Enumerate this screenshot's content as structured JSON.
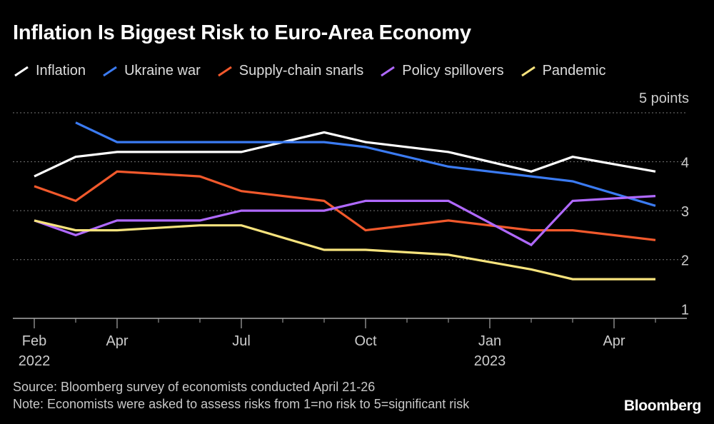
{
  "chart_data": {
    "type": "line",
    "title": "Inflation Is Biggest Risk to Euro-Area Economy",
    "unit_label": "5 points",
    "x": [
      "2022-02",
      "2022-03",
      "2022-04",
      "2022-05",
      "2022-06",
      "2022-07",
      "2022-08",
      "2022-09",
      "2022-10",
      "2022-11",
      "2022-12",
      "2023-01",
      "2023-02",
      "2023-03",
      "2023-04",
      "2023-05"
    ],
    "x_tick_labels": [
      {
        "month": "Feb",
        "year": "2022",
        "x": "2022-02"
      },
      {
        "month": "Apr",
        "year": "",
        "x": "2022-04"
      },
      {
        "month": "Jul",
        "year": "",
        "x": "2022-07"
      },
      {
        "month": "Oct",
        "year": "",
        "x": "2022-10"
      },
      {
        "month": "Jan",
        "year": "2023",
        "x": "2023-01"
      },
      {
        "month": "Apr",
        "year": "",
        "x": "2023-04"
      }
    ],
    "ylim": [
      0.8,
      5
    ],
    "yticks": [
      1,
      2,
      3,
      4,
      5
    ],
    "series": [
      {
        "name": "Inflation",
        "color": "#ffffff",
        "points": [
          [
            "2022-02",
            3.7
          ],
          [
            "2022-03",
            4.1
          ],
          [
            "2022-04",
            4.2
          ],
          [
            "2022-07",
            4.2
          ],
          [
            "2022-09",
            4.6
          ],
          [
            "2022-10",
            4.4
          ],
          [
            "2022-12",
            4.2
          ],
          [
            "2023-02",
            3.8
          ],
          [
            "2023-03",
            4.1
          ],
          [
            "2023-05",
            3.8
          ]
        ]
      },
      {
        "name": "Ukraine war",
        "color": "#3b7bf2",
        "points": [
          [
            "2022-03",
            4.8
          ],
          [
            "2022-04",
            4.4
          ],
          [
            "2022-09",
            4.4
          ],
          [
            "2022-10",
            4.3
          ],
          [
            "2022-12",
            3.9
          ],
          [
            "2023-02",
            3.7
          ],
          [
            "2023-03",
            3.6
          ],
          [
            "2023-05",
            3.1
          ]
        ]
      },
      {
        "name": "Supply-chain snarls",
        "color": "#f2592c",
        "points": [
          [
            "2022-02",
            3.5
          ],
          [
            "2022-03",
            3.2
          ],
          [
            "2022-04",
            3.8
          ],
          [
            "2022-06",
            3.7
          ],
          [
            "2022-07",
            3.4
          ],
          [
            "2022-09",
            3.2
          ],
          [
            "2022-10",
            2.6
          ],
          [
            "2022-12",
            2.8
          ],
          [
            "2023-02",
            2.6
          ],
          [
            "2023-03",
            2.6
          ],
          [
            "2023-05",
            2.4
          ]
        ]
      },
      {
        "name": "Policy spillovers",
        "color": "#b069ff",
        "points": [
          [
            "2022-02",
            2.8
          ],
          [
            "2022-03",
            2.5
          ],
          [
            "2022-04",
            2.8
          ],
          [
            "2022-06",
            2.8
          ],
          [
            "2022-07",
            3.0
          ],
          [
            "2022-09",
            3.0
          ],
          [
            "2022-10",
            3.2
          ],
          [
            "2022-12",
            3.2
          ],
          [
            "2023-02",
            2.3
          ],
          [
            "2023-03",
            3.2
          ],
          [
            "2023-05",
            3.3
          ]
        ]
      },
      {
        "name": "Pandemic",
        "color": "#f7e37d",
        "points": [
          [
            "2022-02",
            2.8
          ],
          [
            "2022-03",
            2.6
          ],
          [
            "2022-04",
            2.6
          ],
          [
            "2022-06",
            2.7
          ],
          [
            "2022-07",
            2.7
          ],
          [
            "2022-09",
            2.2
          ],
          [
            "2022-10",
            2.2
          ],
          [
            "2022-12",
            2.1
          ],
          [
            "2023-02",
            1.8
          ],
          [
            "2023-03",
            1.6
          ],
          [
            "2023-05",
            1.6
          ]
        ]
      }
    ],
    "legend_position": "top",
    "grid": true
  },
  "footer": {
    "source": "Source: Bloomberg survey of economists conducted April 21-26",
    "note": "Note: Economists were asked to assess risks from 1=no risk to 5=significant risk"
  },
  "brand": "Bloomberg"
}
